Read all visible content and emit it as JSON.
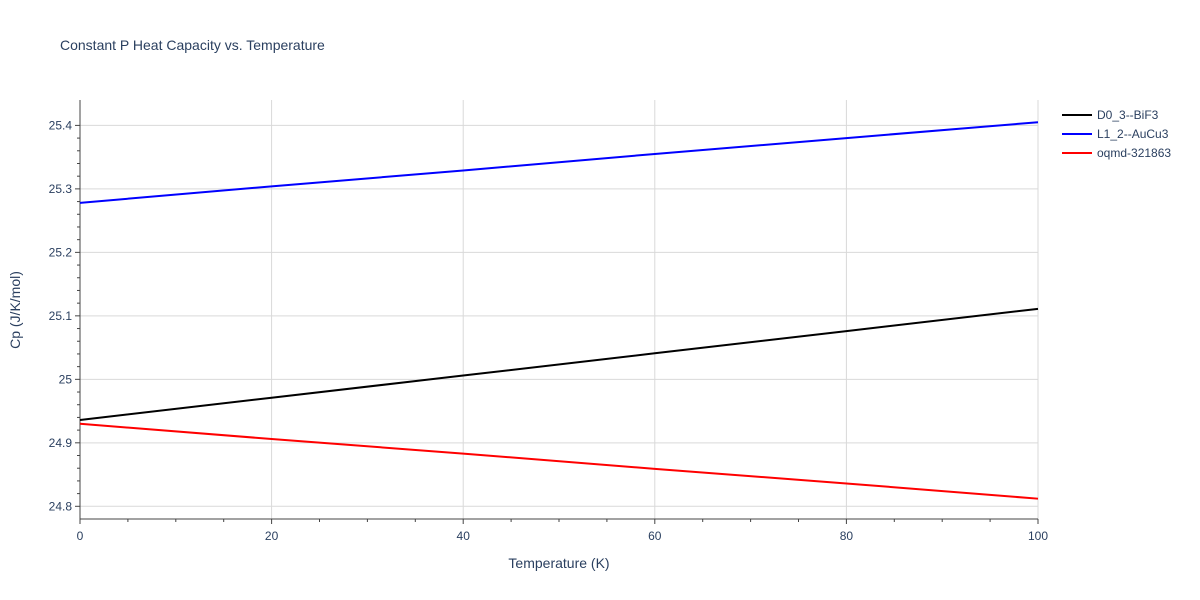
{
  "chart_data": {
    "type": "line",
    "title": "Constant P Heat Capacity vs. Temperature",
    "xlabel": "Temperature (K)",
    "ylabel": "Cp (J/K/mol)",
    "xlim": [
      0,
      100
    ],
    "ylim": [
      24.78,
      25.44
    ],
    "x_ticks": [
      0,
      20,
      40,
      60,
      80,
      100
    ],
    "x_tick_labels": [
      "0",
      "20",
      "40",
      "60",
      "80",
      "100"
    ],
    "y_ticks": [
      24.8,
      24.9,
      25.0,
      25.1,
      25.2,
      25.3,
      25.4
    ],
    "y_tick_labels": [
      "24.8",
      "24.9",
      "25",
      "25.1",
      "25.2",
      "25.3",
      "25.4"
    ],
    "grid": true,
    "legend_position": "top-right",
    "series": [
      {
        "name": "D0_3--BiF3",
        "color": "#000000",
        "x": [
          0,
          20,
          40,
          60,
          80,
          100
        ],
        "y": [
          24.936,
          24.971,
          25.006,
          25.041,
          25.076,
          25.111
        ]
      },
      {
        "name": "L1_2--AuCu3",
        "color": "#0000ff",
        "x": [
          0,
          20,
          40,
          60,
          80,
          100
        ],
        "y": [
          25.278,
          25.304,
          25.329,
          25.355,
          25.38,
          25.405
        ]
      },
      {
        "name": "oqmd-321863",
        "color": "#ff0000",
        "x": [
          0,
          20,
          40,
          60,
          80,
          100
        ],
        "y": [
          24.93,
          24.906,
          24.883,
          24.859,
          24.836,
          24.812
        ]
      }
    ]
  }
}
